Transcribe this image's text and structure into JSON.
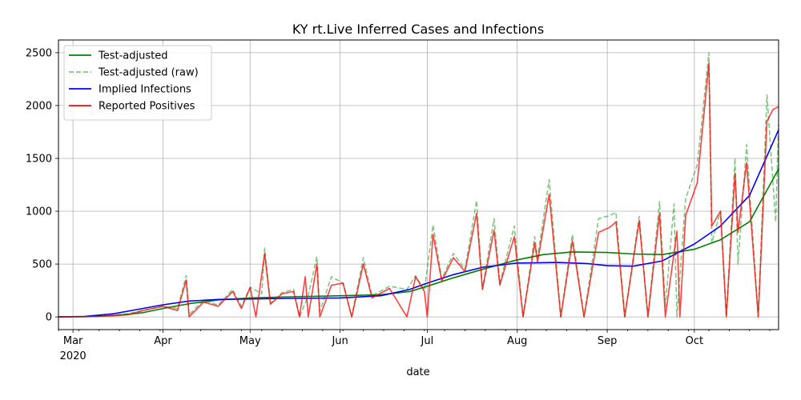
{
  "chart_data": {
    "type": "line",
    "title": "KY rt.Live Inferred Cases and Infections",
    "xlabel": "date",
    "ylabel": "",
    "x_ticks": [
      {
        "date": "2020-03-01",
        "label": "Mar",
        "sublabel": "2020"
      },
      {
        "date": "2020-04-01",
        "label": "Apr"
      },
      {
        "date": "2020-05-01",
        "label": "May"
      },
      {
        "date": "2020-06-01",
        "label": "Jun"
      },
      {
        "date": "2020-07-01",
        "label": "Jul"
      },
      {
        "date": "2020-08-01",
        "label": "Aug"
      },
      {
        "date": "2020-09-01",
        "label": "Sep"
      },
      {
        "date": "2020-10-01",
        "label": "Oct"
      }
    ],
    "xlim": [
      "2020-02-25",
      "2020-10-30"
    ],
    "ylim": [
      -120,
      2620
    ],
    "y_ticks": [
      0,
      500,
      1000,
      1500,
      2000,
      2500
    ],
    "grid": true,
    "legend_position": "top-left",
    "series": [
      {
        "name": "Test-adjusted",
        "color": "#008000",
        "style": "solid",
        "points": [
          [
            "2020-02-25",
            0
          ],
          [
            "2020-03-05",
            2
          ],
          [
            "2020-03-15",
            12
          ],
          [
            "2020-03-25",
            40
          ],
          [
            "2020-04-01",
            80
          ],
          [
            "2020-04-10",
            125
          ],
          [
            "2020-04-20",
            160
          ],
          [
            "2020-05-01",
            180
          ],
          [
            "2020-05-15",
            190
          ],
          [
            "2020-06-01",
            200
          ],
          [
            "2020-06-15",
            210
          ],
          [
            "2020-06-25",
            240
          ],
          [
            "2020-07-01",
            290
          ],
          [
            "2020-07-10",
            370
          ],
          [
            "2020-07-20",
            450
          ],
          [
            "2020-08-01",
            540
          ],
          [
            "2020-08-10",
            590
          ],
          [
            "2020-08-20",
            615
          ],
          [
            "2020-09-01",
            610
          ],
          [
            "2020-09-10",
            595
          ],
          [
            "2020-09-20",
            590
          ],
          [
            "2020-10-01",
            640
          ],
          [
            "2020-10-10",
            730
          ],
          [
            "2020-10-20",
            900
          ],
          [
            "2020-10-30",
            1400
          ]
        ]
      },
      {
        "name": "Test-adjusted (raw)",
        "color": "#2ca02c",
        "style": "dashed",
        "points": [
          [
            "2020-02-25",
            0
          ],
          [
            "2020-03-10",
            5
          ],
          [
            "2020-03-20",
            30
          ],
          [
            "2020-03-25",
            60
          ],
          [
            "2020-04-01",
            100
          ],
          [
            "2020-04-06",
            80
          ],
          [
            "2020-04-09",
            390
          ],
          [
            "2020-04-10",
            20
          ],
          [
            "2020-04-15",
            160
          ],
          [
            "2020-04-20",
            110
          ],
          [
            "2020-04-25",
            260
          ],
          [
            "2020-04-28",
            100
          ],
          [
            "2020-05-01",
            280
          ],
          [
            "2020-05-05",
            220
          ],
          [
            "2020-05-06",
            650
          ],
          [
            "2020-05-08",
            130
          ],
          [
            "2020-05-12",
            230
          ],
          [
            "2020-05-16",
            260
          ],
          [
            "2020-05-18",
            0
          ],
          [
            "2020-05-21",
            200
          ],
          [
            "2020-05-24",
            570
          ],
          [
            "2020-05-25",
            50
          ],
          [
            "2020-05-29",
            380
          ],
          [
            "2020-06-02",
            320
          ],
          [
            "2020-06-05",
            0
          ],
          [
            "2020-06-09",
            560
          ],
          [
            "2020-06-12",
            200
          ],
          [
            "2020-06-18",
            290
          ],
          [
            "2020-06-24",
            260
          ],
          [
            "2020-06-27",
            390
          ],
          [
            "2020-06-30",
            250
          ],
          [
            "2020-07-03",
            870
          ],
          [
            "2020-07-06",
            360
          ],
          [
            "2020-07-10",
            600
          ],
          [
            "2020-07-14",
            450
          ],
          [
            "2020-07-18",
            1100
          ],
          [
            "2020-07-20",
            260
          ],
          [
            "2020-07-24",
            930
          ],
          [
            "2020-07-26",
            320
          ],
          [
            "2020-07-31",
            860
          ],
          [
            "2020-08-03",
            0
          ],
          [
            "2020-08-07",
            760
          ],
          [
            "2020-08-08",
            560
          ],
          [
            "2020-08-12",
            1300
          ],
          [
            "2020-08-16",
            0
          ],
          [
            "2020-08-20",
            780
          ],
          [
            "2020-08-24",
            0
          ],
          [
            "2020-08-29",
            930
          ],
          [
            "2020-09-02",
            960
          ],
          [
            "2020-09-04",
            990
          ],
          [
            "2020-09-07",
            0
          ],
          [
            "2020-09-12",
            950
          ],
          [
            "2020-09-15",
            0
          ],
          [
            "2020-09-19",
            1090
          ],
          [
            "2020-09-21",
            100
          ],
          [
            "2020-09-24",
            1070
          ],
          [
            "2020-09-25",
            0
          ],
          [
            "2020-09-28",
            1120
          ],
          [
            "2020-10-02",
            1440
          ],
          [
            "2020-10-06",
            2500
          ],
          [
            "2020-10-07",
            700
          ],
          [
            "2020-10-10",
            1000
          ],
          [
            "2020-10-12",
            0
          ],
          [
            "2020-10-15",
            1500
          ],
          [
            "2020-10-16",
            500
          ],
          [
            "2020-10-19",
            1630
          ],
          [
            "2020-10-23",
            0
          ],
          [
            "2020-10-26",
            2100
          ],
          [
            "2020-10-29",
            900
          ],
          [
            "2020-10-30",
            1820
          ]
        ]
      },
      {
        "name": "Implied Infections",
        "color": "#0000ff",
        "style": "solid",
        "points": [
          [
            "2020-02-25",
            0
          ],
          [
            "2020-03-05",
            5
          ],
          [
            "2020-03-15",
            30
          ],
          [
            "2020-03-25",
            80
          ],
          [
            "2020-04-01",
            115
          ],
          [
            "2020-04-10",
            150
          ],
          [
            "2020-04-20",
            165
          ],
          [
            "2020-05-01",
            170
          ],
          [
            "2020-05-15",
            175
          ],
          [
            "2020-06-01",
            180
          ],
          [
            "2020-06-15",
            200
          ],
          [
            "2020-06-25",
            260
          ],
          [
            "2020-07-01",
            320
          ],
          [
            "2020-07-10",
            400
          ],
          [
            "2020-07-20",
            470
          ],
          [
            "2020-08-01",
            510
          ],
          [
            "2020-08-15",
            515
          ],
          [
            "2020-08-25",
            505
          ],
          [
            "2020-09-01",
            485
          ],
          [
            "2020-09-10",
            480
          ],
          [
            "2020-09-20",
            530
          ],
          [
            "2020-10-01",
            690
          ],
          [
            "2020-10-10",
            860
          ],
          [
            "2020-10-20",
            1150
          ],
          [
            "2020-10-30",
            1770
          ]
        ]
      },
      {
        "name": "Reported Positives",
        "color": "#ff0000",
        "style": "solid",
        "points": [
          [
            "2020-02-25",
            0
          ],
          [
            "2020-03-10",
            5
          ],
          [
            "2020-03-20",
            20
          ],
          [
            "2020-03-25",
            60
          ],
          [
            "2020-04-01",
            100
          ],
          [
            "2020-04-06",
            60
          ],
          [
            "2020-04-09",
            350
          ],
          [
            "2020-04-10",
            0
          ],
          [
            "2020-04-15",
            140
          ],
          [
            "2020-04-20",
            100
          ],
          [
            "2020-04-25",
            240
          ],
          [
            "2020-04-28",
            80
          ],
          [
            "2020-05-01",
            280
          ],
          [
            "2020-05-03",
            0
          ],
          [
            "2020-05-06",
            600
          ],
          [
            "2020-05-08",
            120
          ],
          [
            "2020-05-12",
            220
          ],
          [
            "2020-05-16",
            240
          ],
          [
            "2020-05-18",
            0
          ],
          [
            "2020-05-20",
            380
          ],
          [
            "2020-05-21",
            0
          ],
          [
            "2020-05-24",
            500
          ],
          [
            "2020-05-25",
            0
          ],
          [
            "2020-05-29",
            300
          ],
          [
            "2020-06-02",
            320
          ],
          [
            "2020-06-05",
            0
          ],
          [
            "2020-06-09",
            500
          ],
          [
            "2020-06-12",
            180
          ],
          [
            "2020-06-18",
            270
          ],
          [
            "2020-06-24",
            0
          ],
          [
            "2020-06-27",
            380
          ],
          [
            "2020-06-30",
            240
          ],
          [
            "2020-07-01",
            0
          ],
          [
            "2020-07-03",
            780
          ],
          [
            "2020-07-06",
            340
          ],
          [
            "2020-07-10",
            560
          ],
          [
            "2020-07-14",
            430
          ],
          [
            "2020-07-18",
            980
          ],
          [
            "2020-07-20",
            260
          ],
          [
            "2020-07-24",
            820
          ],
          [
            "2020-07-26",
            300
          ],
          [
            "2020-07-31",
            760
          ],
          [
            "2020-08-03",
            0
          ],
          [
            "2020-08-07",
            700
          ],
          [
            "2020-08-08",
            520
          ],
          [
            "2020-08-12",
            1160
          ],
          [
            "2020-08-16",
            0
          ],
          [
            "2020-08-20",
            720
          ],
          [
            "2020-08-24",
            0
          ],
          [
            "2020-08-29",
            800
          ],
          [
            "2020-09-02",
            850
          ],
          [
            "2020-09-04",
            900
          ],
          [
            "2020-09-07",
            0
          ],
          [
            "2020-09-12",
            910
          ],
          [
            "2020-09-15",
            0
          ],
          [
            "2020-09-19",
            980
          ],
          [
            "2020-09-21",
            0
          ],
          [
            "2020-09-25",
            810
          ],
          [
            "2020-09-26",
            0
          ],
          [
            "2020-09-28",
            960
          ],
          [
            "2020-10-02",
            1270
          ],
          [
            "2020-10-06",
            2400
          ],
          [
            "2020-10-07",
            860
          ],
          [
            "2020-10-10",
            1000
          ],
          [
            "2020-10-12",
            0
          ],
          [
            "2020-10-15",
            1360
          ],
          [
            "2020-10-16",
            800
          ],
          [
            "2020-10-19",
            1460
          ],
          [
            "2020-10-23",
            0
          ],
          [
            "2020-10-26",
            1850
          ],
          [
            "2020-10-28",
            1960
          ],
          [
            "2020-10-30",
            1990
          ]
        ]
      }
    ]
  }
}
